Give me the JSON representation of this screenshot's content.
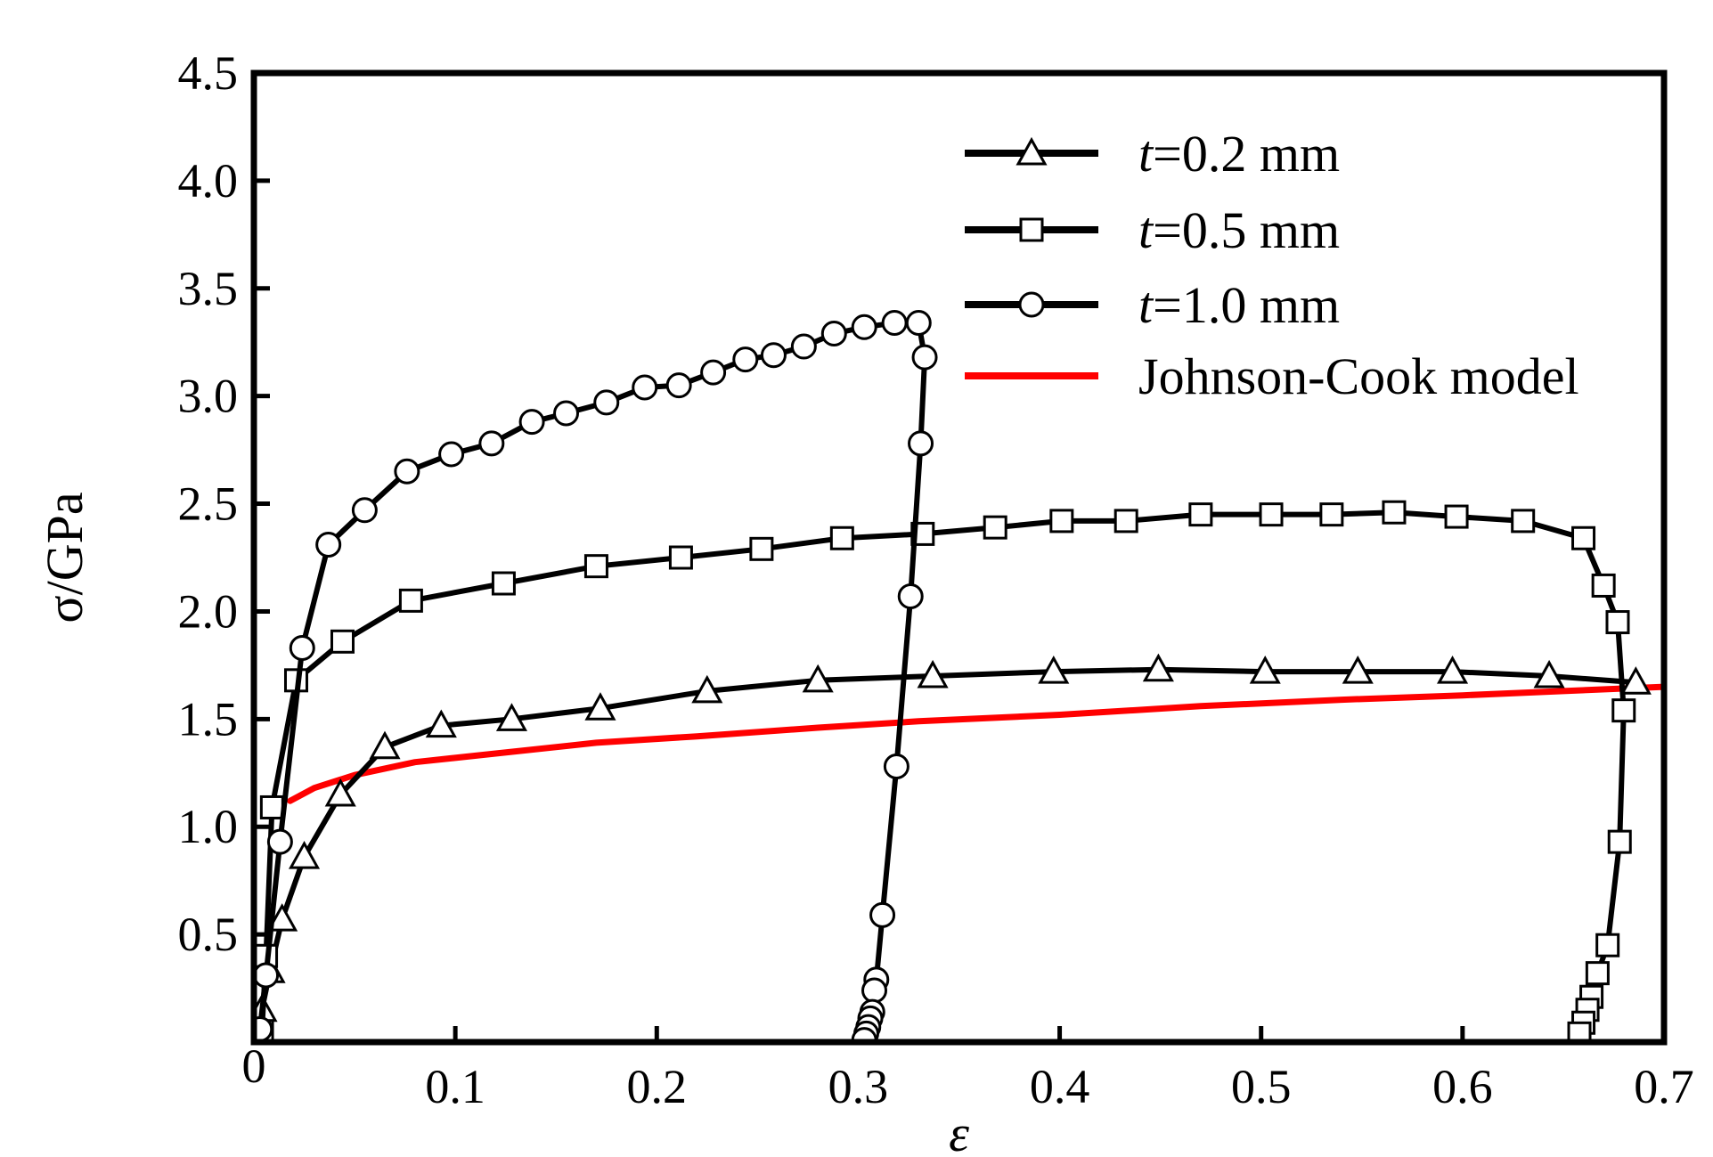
{
  "chart_data": {
    "type": "line",
    "xlabel": "ε",
    "ylabel": "σ/GPa",
    "xlim": [
      0,
      0.7
    ],
    "ylim": [
      0,
      4.5
    ],
    "xticks": [
      {
        "value": 0,
        "label": "0"
      },
      {
        "value": 0.1,
        "label": "0.1"
      },
      {
        "value": 0.2,
        "label": "0.2"
      },
      {
        "value": 0.3,
        "label": "0.3"
      },
      {
        "value": 0.4,
        "label": "0.4"
      },
      {
        "value": 0.5,
        "label": "0.5"
      },
      {
        "value": 0.6,
        "label": "0.6"
      },
      {
        "value": 0.7,
        "label": "0.7"
      }
    ],
    "yticks": [
      {
        "value": 0.5,
        "label": "0.5"
      },
      {
        "value": 1.0,
        "label": "1.0"
      },
      {
        "value": 1.5,
        "label": "1.5"
      },
      {
        "value": 2.0,
        "label": "2.0"
      },
      {
        "value": 2.5,
        "label": "2.5"
      },
      {
        "value": 3.0,
        "label": "3.0"
      },
      {
        "value": 3.5,
        "label": "3.5"
      },
      {
        "value": 4.0,
        "label": "4.0"
      },
      {
        "value": 4.5,
        "label": "4.5"
      }
    ],
    "grid": false,
    "legend_position": "top-right",
    "series": [
      {
        "name": "t=0.2 mm",
        "name_italic": "t",
        "name_rest": "=0.2 mm",
        "marker": "triangle",
        "color": "#000000",
        "points": [
          [
            0.002,
            0.03
          ],
          [
            0.004,
            0.15
          ],
          [
            0.008,
            0.33
          ],
          [
            0.014,
            0.57
          ],
          [
            0.025,
            0.86
          ],
          [
            0.043,
            1.15
          ],
          [
            0.065,
            1.37
          ],
          [
            0.093,
            1.47
          ],
          [
            0.128,
            1.5
          ],
          [
            0.172,
            1.55
          ],
          [
            0.225,
            1.63
          ],
          [
            0.28,
            1.68
          ],
          [
            0.337,
            1.7
          ],
          [
            0.397,
            1.72
          ],
          [
            0.449,
            1.73
          ],
          [
            0.502,
            1.72
          ],
          [
            0.548,
            1.72
          ],
          [
            0.595,
            1.72
          ],
          [
            0.643,
            1.7
          ],
          [
            0.686,
            1.67
          ]
        ]
      },
      {
        "name": "t=0.5 mm",
        "name_italic": "t",
        "name_rest": "=0.5 mm",
        "marker": "square",
        "color": "#000000",
        "points": [
          [
            0.004,
            0.05
          ],
          [
            0.006,
            0.4
          ],
          [
            0.009,
            1.09
          ],
          [
            0.021,
            1.68
          ],
          [
            0.044,
            1.86
          ],
          [
            0.078,
            2.05
          ],
          [
            0.124,
            2.13
          ],
          [
            0.17,
            2.21
          ],
          [
            0.212,
            2.25
          ],
          [
            0.252,
            2.29
          ],
          [
            0.292,
            2.34
          ],
          [
            0.332,
            2.36
          ],
          [
            0.368,
            2.39
          ],
          [
            0.401,
            2.42
          ],
          [
            0.433,
            2.42
          ],
          [
            0.47,
            2.45
          ],
          [
            0.505,
            2.45
          ],
          [
            0.535,
            2.45
          ],
          [
            0.566,
            2.46
          ],
          [
            0.597,
            2.44
          ],
          [
            0.63,
            2.42
          ],
          [
            0.66,
            2.34
          ],
          [
            0.67,
            2.12
          ],
          [
            0.677,
            1.95
          ],
          [
            0.68,
            1.54
          ],
          [
            0.678,
            0.93
          ],
          [
            0.672,
            0.45
          ],
          [
            0.667,
            0.32
          ],
          [
            0.664,
            0.21
          ],
          [
            0.662,
            0.15
          ],
          [
            0.66,
            0.09
          ],
          [
            0.658,
            0.04
          ]
        ]
      },
      {
        "name": "t=1.0 mm",
        "name_italic": "t",
        "name_rest": "=1.0 mm",
        "marker": "circle",
        "color": "#000000",
        "points": [
          [
            0.003,
            0.06
          ],
          [
            0.006,
            0.31
          ],
          [
            0.013,
            0.93
          ],
          [
            0.024,
            1.83
          ],
          [
            0.037,
            2.31
          ],
          [
            0.055,
            2.47
          ],
          [
            0.076,
            2.65
          ],
          [
            0.098,
            2.73
          ],
          [
            0.118,
            2.78
          ],
          [
            0.138,
            2.88
          ],
          [
            0.155,
            2.92
          ],
          [
            0.175,
            2.97
          ],
          [
            0.194,
            3.04
          ],
          [
            0.211,
            3.05
          ],
          [
            0.228,
            3.11
          ],
          [
            0.244,
            3.17
          ],
          [
            0.258,
            3.19
          ],
          [
            0.273,
            3.23
          ],
          [
            0.288,
            3.29
          ],
          [
            0.303,
            3.32
          ],
          [
            0.318,
            3.34
          ],
          [
            0.33,
            3.34
          ],
          [
            0.333,
            3.18
          ],
          [
            0.331,
            2.78
          ],
          [
            0.326,
            2.07
          ],
          [
            0.319,
            1.28
          ],
          [
            0.312,
            0.59
          ],
          [
            0.309,
            0.29
          ],
          [
            0.308,
            0.24
          ],
          [
            0.307,
            0.14
          ],
          [
            0.306,
            0.11
          ],
          [
            0.305,
            0.07
          ],
          [
            0.304,
            0.04
          ],
          [
            0.303,
            0.01
          ]
        ]
      },
      {
        "name": "Johnson-Cook model",
        "marker": "none",
        "color": "#ff0000",
        "points": [
          [
            0.018,
            1.12
          ],
          [
            0.03,
            1.18
          ],
          [
            0.05,
            1.24
          ],
          [
            0.08,
            1.3
          ],
          [
            0.12,
            1.34
          ],
          [
            0.17,
            1.39
          ],
          [
            0.22,
            1.42
          ],
          [
            0.28,
            1.46
          ],
          [
            0.33,
            1.49
          ],
          [
            0.4,
            1.52
          ],
          [
            0.47,
            1.56
          ],
          [
            0.54,
            1.59
          ],
          [
            0.6,
            1.61
          ],
          [
            0.65,
            1.63
          ],
          [
            0.7,
            1.65
          ]
        ]
      }
    ]
  }
}
